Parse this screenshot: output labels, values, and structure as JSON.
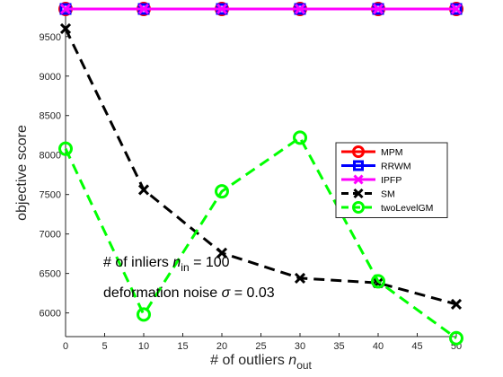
{
  "chart_data": {
    "type": "line",
    "x": [
      0,
      10,
      20,
      30,
      40,
      50
    ],
    "xlim": [
      0,
      50
    ],
    "ylim": [
      5700,
      9850
    ],
    "xticks": [
      "0",
      "5",
      "10",
      "15",
      "20",
      "25",
      "30",
      "35",
      "40",
      "45",
      "50"
    ],
    "yticks": [
      "6000",
      "6500",
      "7000",
      "7500",
      "8000",
      "8500",
      "9000",
      "9500"
    ],
    "xlabel": {
      "main": "# of outliers ",
      "var": "n",
      "sub": "out"
    },
    "ylabel": "objective score",
    "grid": false,
    "legend_position": "right",
    "series": [
      {
        "name": "MPM",
        "values": [
          9850,
          9850,
          9850,
          9850,
          9850,
          9850
        ],
        "color": "#ff0000",
        "marker": "circle",
        "dashed": false
      },
      {
        "name": "RRWM",
        "values": [
          9850,
          9850,
          9850,
          9850,
          9850,
          9850
        ],
        "color": "#0000ff",
        "marker": "square",
        "dashed": false
      },
      {
        "name": "IPFP",
        "values": [
          9850,
          9850,
          9850,
          9850,
          9850,
          9850
        ],
        "color": "#ff00ff",
        "marker": "x",
        "dashed": false
      },
      {
        "name": "SM",
        "values": [
          9600,
          7560,
          6760,
          6440,
          6380,
          6110
        ],
        "color": "#000000",
        "marker": "x",
        "dashed": true
      },
      {
        "name": "twoLevelGM",
        "values": [
          8080,
          5980,
          7540,
          8220,
          6400,
          5680
        ],
        "color": "#00ff00",
        "marker": "circle",
        "dashed": true
      }
    ],
    "annotations": [
      {
        "text": "# of inliers ",
        "var": "n",
        "sub": "in",
        "tail": " = 100"
      },
      {
        "text": "deformation noise ",
        "var": "σ",
        "sub": "",
        "tail": " = 0.03"
      }
    ]
  }
}
